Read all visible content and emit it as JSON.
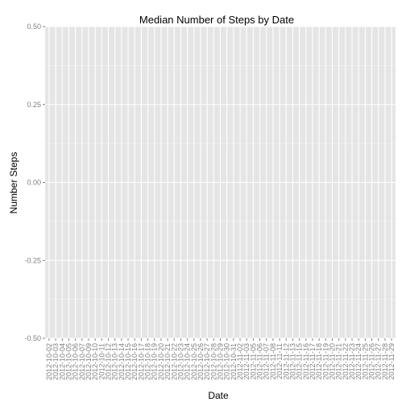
{
  "chart_data": {
    "type": "bar",
    "title": "Median Number of Steps by Date",
    "xlabel": "Date",
    "ylabel": "Number Steps",
    "ylim": [
      -0.5,
      0.5
    ],
    "yticks": [
      -0.5,
      -0.25,
      0,
      0.25,
      0.5
    ],
    "ytick_labels": [
      "-0.50",
      "-0.25",
      "0.00",
      "0.25",
      "0.50"
    ],
    "grid": true,
    "panel_background": "#e5e5e5",
    "grid_color": "#ffffff",
    "categories": [
      "2012-10-02",
      "2012-10-03",
      "2012-10-04",
      "2012-10-05",
      "2012-10-06",
      "2012-10-07",
      "2012-10-09",
      "2012-10-10",
      "2012-10-11",
      "2012-10-12",
      "2012-10-13",
      "2012-10-14",
      "2012-10-15",
      "2012-10-16",
      "2012-10-17",
      "2012-10-18",
      "2012-10-19",
      "2012-10-20",
      "2012-10-21",
      "2012-10-22",
      "2012-10-23",
      "2012-10-24",
      "2012-10-25",
      "2012-10-26",
      "2012-10-27",
      "2012-10-28",
      "2012-10-29",
      "2012-10-30",
      "2012-10-31",
      "2012-11-02",
      "2012-11-03",
      "2012-11-05",
      "2012-11-06",
      "2012-11-07",
      "2012-11-08",
      "2012-11-11",
      "2012-11-12",
      "2012-11-13",
      "2012-11-15",
      "2012-11-16",
      "2012-11-17",
      "2012-11-18",
      "2012-11-19",
      "2012-11-20",
      "2012-11-21",
      "2012-11-22",
      "2012-11-23",
      "2012-11-24",
      "2012-11-25",
      "2012-11-26",
      "2012-11-27",
      "2012-11-28",
      "2012-11-29"
    ],
    "values": [
      0,
      0,
      0,
      0,
      0,
      0,
      0,
      0,
      0,
      0,
      0,
      0,
      0,
      0,
      0,
      0,
      0,
      0,
      0,
      0,
      0,
      0,
      0,
      0,
      0,
      0,
      0,
      0,
      0,
      0,
      0,
      0,
      0,
      0,
      0,
      0,
      0,
      0,
      0,
      0,
      0,
      0,
      0,
      0,
      0,
      0,
      0,
      0,
      0,
      0,
      0,
      0,
      0
    ]
  }
}
